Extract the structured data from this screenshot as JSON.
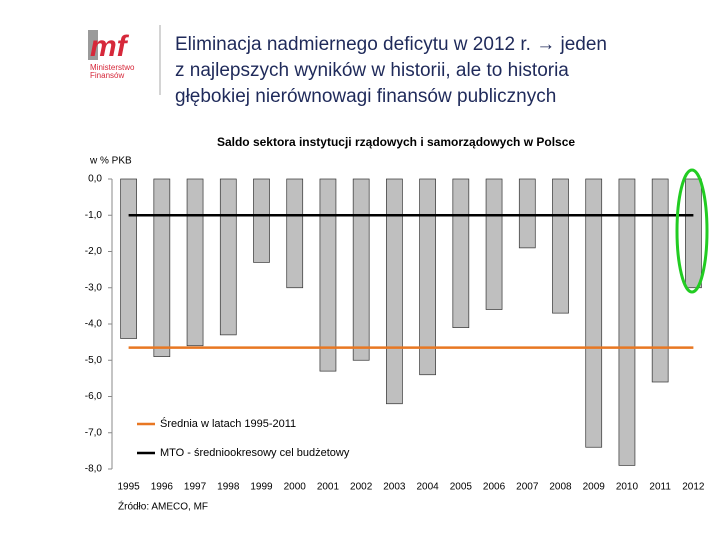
{
  "logo": {
    "mark": "mf",
    "line1": "Ministerstwo",
    "line2": "Finansów"
  },
  "title_lines": [
    "Eliminacja nadmiernego deficytu w 2012 r. → jeden",
    "z najlepszych wyników w historii, ale to historia",
    "głębokiej nierównowagi finansów publicznych"
  ],
  "chart_data": {
    "type": "bar",
    "title": "Saldo sektora instytucji rządowych i samorządowych w Polsce",
    "y_label": "w % PKB",
    "categories": [
      "1995",
      "1996",
      "1997",
      "1998",
      "1999",
      "2000",
      "2001",
      "2002",
      "2003",
      "2004",
      "2005",
      "2006",
      "2007",
      "2008",
      "2009",
      "2010",
      "2011",
      "2012"
    ],
    "values": [
      -4.4,
      -4.9,
      -4.6,
      -4.3,
      -2.3,
      -3.0,
      -5.3,
      -5.0,
      -6.2,
      -5.4,
      -4.1,
      -3.6,
      -1.9,
      -3.7,
      -7.4,
      -7.9,
      -5.6,
      -3.0
    ],
    "color": "#bfbfbf",
    "ylim": [
      -8,
      0
    ],
    "yticks": [
      {
        "value": 0,
        "label": "0,0"
      },
      {
        "value": -1,
        "label": "-1,0"
      },
      {
        "value": -2,
        "label": "-2,0"
      },
      {
        "value": -3,
        "label": "-3,0"
      },
      {
        "value": -4,
        "label": "-4,0"
      },
      {
        "value": -5,
        "label": "-5,0"
      },
      {
        "value": -6,
        "label": "-6,0"
      },
      {
        "value": -7,
        "label": "-7,0"
      },
      {
        "value": -8,
        "label": "-8,0"
      }
    ],
    "reference_lines": [
      {
        "name": "Średnia w latach 1995-2011",
        "color": "#e87722",
        "value": -4.65
      },
      {
        "name": "MTO - średniookresowy cel budżetowy",
        "color": "#000000",
        "value": -1.0
      }
    ],
    "source": "Źródło: AMECO, MF"
  }
}
